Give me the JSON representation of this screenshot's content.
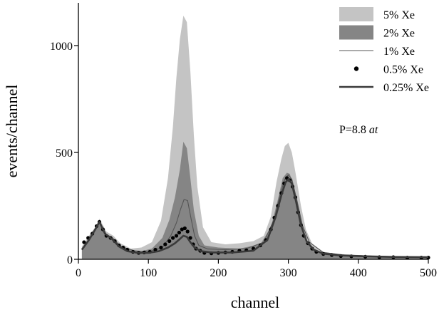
{
  "chart_data": {
    "type": "area",
    "title": "",
    "xlabel": "channel",
    "ylabel": "events/channel",
    "xlim": [
      0,
      500
    ],
    "ylim": [
      0,
      1200
    ],
    "xticks": [
      0,
      100,
      200,
      300,
      400,
      500
    ],
    "yticks": [
      0,
      500,
      1000
    ],
    "grid": false,
    "legend_position": "top-right",
    "annotation": {
      "prefix": "P=8.8 ",
      "italic": "at"
    },
    "series": [
      {
        "name": "5% Xe",
        "style": "filled-light",
        "color": "#c4c4c4",
        "x": [
          5,
          15,
          25,
          30,
          40,
          50,
          60,
          75,
          90,
          105,
          118,
          128,
          135,
          140,
          145,
          150,
          155,
          160,
          165,
          170,
          178,
          190,
          210,
          230,
          250,
          265,
          275,
          283,
          290,
          295,
          300,
          305,
          310,
          318,
          325,
          335,
          350,
          370,
          400,
          430,
          460,
          500
        ],
        "y": [
          60,
          110,
          155,
          190,
          130,
          110,
          75,
          50,
          55,
          80,
          180,
          380,
          620,
          850,
          1030,
          1140,
          1110,
          880,
          580,
          340,
          150,
          80,
          70,
          75,
          85,
          110,
          200,
          360,
          470,
          530,
          545,
          500,
          410,
          250,
          140,
          65,
          35,
          25,
          20,
          15,
          12,
          10
        ]
      },
      {
        "name": "2% Xe",
        "style": "filled-dark",
        "color": "#858585",
        "x": [
          5,
          15,
          25,
          30,
          40,
          50,
          60,
          75,
          90,
          105,
          120,
          130,
          138,
          145,
          150,
          155,
          160,
          165,
          172,
          180,
          200,
          230,
          260,
          275,
          285,
          292,
          298,
          302,
          308,
          315,
          325,
          340,
          360,
          400,
          450,
          500
        ],
        "y": [
          50,
          100,
          150,
          180,
          120,
          100,
          65,
          42,
          38,
          50,
          100,
          185,
          290,
          420,
          550,
          520,
          380,
          230,
          110,
          65,
          55,
          50,
          70,
          150,
          280,
          380,
          405,
          400,
          340,
          200,
          90,
          40,
          25,
          18,
          12,
          10
        ]
      },
      {
        "name": "1% Xe",
        "style": "thin-line",
        "color": "#555555",
        "x": [
          5,
          15,
          25,
          30,
          40,
          50,
          60,
          80,
          100,
          120,
          132,
          140,
          146,
          151,
          156,
          161,
          166,
          172,
          185,
          210,
          240,
          265,
          280,
          288,
          295,
          300,
          305,
          312,
          320,
          330,
          350,
          380,
          420,
          460,
          500
        ],
        "y": [
          45,
          95,
          150,
          180,
          115,
          95,
          60,
          40,
          35,
          55,
          110,
          170,
          235,
          280,
          275,
          190,
          110,
          65,
          48,
          45,
          50,
          80,
          190,
          300,
          375,
          395,
          375,
          280,
          160,
          80,
          32,
          20,
          15,
          12,
          10
        ]
      },
      {
        "name": "0.5% Xe",
        "style": "dots",
        "color": "#000000",
        "x": [
          8,
          14,
          20,
          26,
          30,
          35,
          40,
          46,
          52,
          58,
          64,
          70,
          78,
          86,
          94,
          102,
          110,
          118,
          124,
          130,
          135,
          140,
          144,
          148,
          152,
          156,
          160,
          164,
          168,
          174,
          180,
          190,
          200,
          210,
          220,
          230,
          240,
          250,
          260,
          268,
          275,
          280,
          285,
          290,
          294,
          298,
          302,
          306,
          310,
          314,
          318,
          322,
          328,
          334,
          340,
          350,
          362,
          375,
          390,
          410,
          430,
          450,
          470,
          490,
          500
        ],
        "y": [
          80,
          100,
          120,
          155,
          175,
          140,
          110,
          100,
          85,
          65,
          55,
          45,
          35,
          30,
          32,
          35,
          45,
          55,
          70,
          85,
          100,
          110,
          125,
          140,
          145,
          130,
          100,
          70,
          50,
          40,
          30,
          28,
          30,
          32,
          35,
          40,
          42,
          50,
          65,
          90,
          140,
          195,
          250,
          310,
          355,
          380,
          370,
          340,
          290,
          220,
          160,
          110,
          75,
          50,
          35,
          25,
          20,
          15,
          14,
          12,
          10,
          10,
          8,
          8,
          8
        ]
      },
      {
        "name": "0.25% Xe",
        "style": "thick-line",
        "color": "#3a3a3a",
        "x": [
          5,
          15,
          25,
          30,
          38,
          48,
          58,
          70,
          85,
          100,
          115,
          128,
          138,
          145,
          150,
          155,
          160,
          166,
          175,
          190,
          220,
          250,
          270,
          282,
          290,
          296,
          300,
          305,
          311,
          318,
          326,
          336,
          350,
          375,
          410,
          450,
          500
        ],
        "y": [
          45,
          90,
          145,
          175,
          120,
          95,
          60,
          38,
          30,
          30,
          38,
          55,
          75,
          95,
          110,
          105,
          80,
          55,
          38,
          32,
          32,
          40,
          90,
          200,
          300,
          360,
          375,
          355,
          270,
          160,
          85,
          45,
          26,
          18,
          14,
          11,
          10
        ]
      }
    ]
  }
}
